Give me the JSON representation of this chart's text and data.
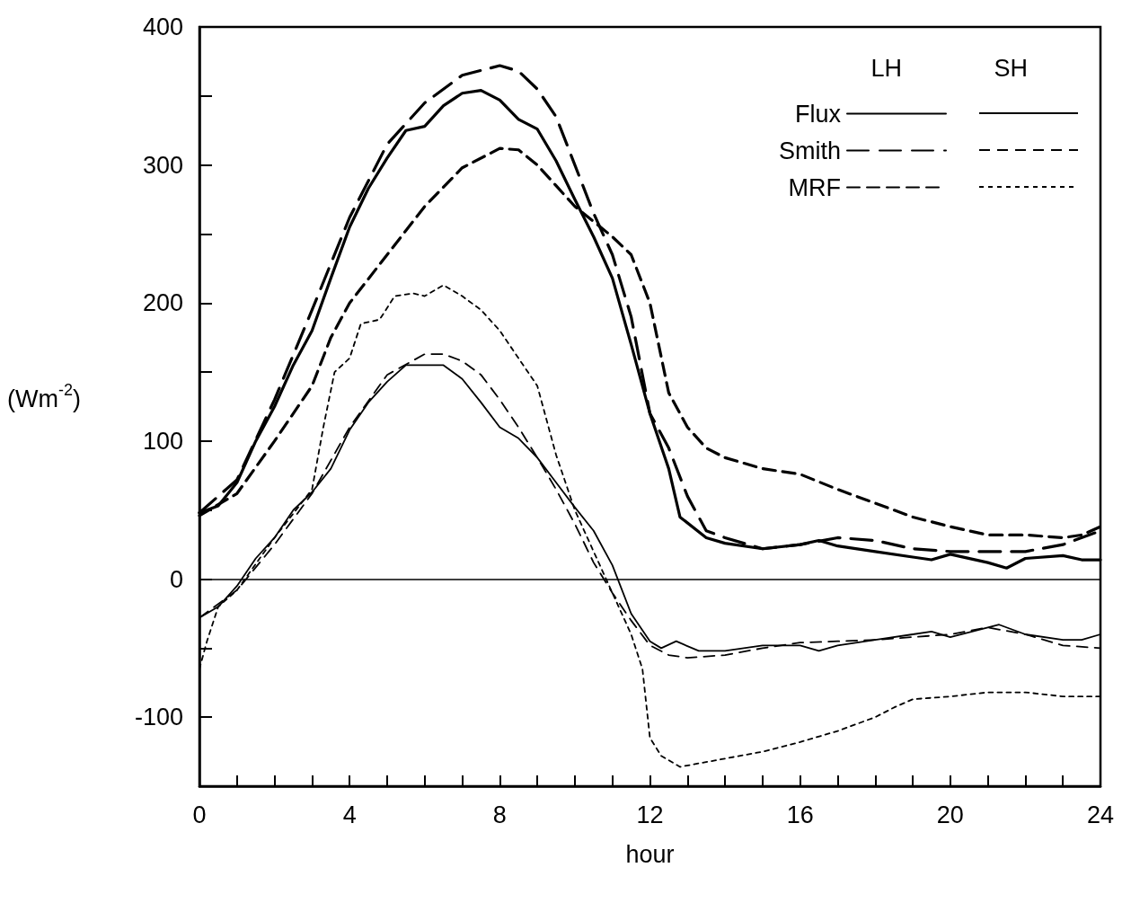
{
  "chart_data": {
    "type": "line",
    "xlabel": "hour",
    "ylabel": "(Wm$^{-2}$)",
    "xlim": [
      0,
      24
    ],
    "ylim": [
      -150,
      400
    ],
    "xticks": [
      0,
      {
        "value": 1,
        "label": null
      },
      {
        "value": 2,
        "label": null
      },
      {
        "value": 3,
        "label": null
      },
      4,
      {
        "value": 5,
        "label": null
      },
      {
        "value": 6,
        "label": null
      },
      {
        "value": 7,
        "label": null
      },
      8,
      {
        "value": 9,
        "label": null
      },
      {
        "value": 10,
        "label": null
      },
      {
        "value": 11,
        "label": null
      },
      12,
      {
        "value": 13,
        "label": null
      },
      {
        "value": 14,
        "label": null
      },
      {
        "value": 15,
        "label": null
      },
      16,
      {
        "value": 17,
        "label": null
      },
      {
        "value": 18,
        "label": null
      },
      {
        "value": 19,
        "label": null
      },
      20,
      {
        "value": 21,
        "label": null
      },
      {
        "value": 22,
        "label": null
      },
      {
        "value": 23,
        "label": null
      },
      24
    ],
    "yticks": [
      {
        "value": -150,
        "label": null
      },
      -100,
      {
        "value": -50,
        "label": null
      },
      0,
      {
        "value": 50,
        "label": null
      },
      100,
      {
        "value": 150,
        "label": null
      },
      200,
      {
        "value": 250,
        "label": null
      },
      300,
      {
        "value": 350,
        "label": null
      },
      400
    ],
    "grid": false,
    "legend": "top right",
    "marker": "none",
    "annotations": [
      "LH",
      "SH"
    ],
    "ref_lines": [
      {
        "axis": "y",
        "value": 0,
        "color": "#000000"
      }
    ],
    "series": [
      {
        "name": "Flux",
        "color": "#000000",
        "line_style": "solid",
        "x": [
          0,
          0.5,
          1,
          1.5,
          2,
          2.5,
          3,
          3.5,
          4,
          4.5,
          5,
          5.5,
          6,
          6.5,
          7,
          7.5,
          8,
          8.5,
          9,
          9.5,
          10,
          10.5,
          11,
          11.5,
          12,
          12.5,
          12.8,
          13.5,
          14,
          15,
          16,
          16.5,
          17,
          18,
          19,
          19.5,
          20,
          21,
          21.5,
          22,
          23,
          23.5,
          24
        ],
        "values": [
          48,
          53,
          70,
          100,
          125,
          155,
          180,
          218,
          255,
          283,
          305,
          325,
          328,
          343,
          352,
          354,
          347,
          333,
          326,
          303,
          275,
          248,
          218,
          170,
          120,
          80,
          45,
          30,
          26,
          22,
          25,
          28,
          24,
          20,
          16,
          14,
          18,
          12,
          8,
          15,
          17,
          14,
          14
        ]
      },
      {
        "name": "Smith",
        "color": "#000000",
        "line_style": "dashed",
        "x": [
          0,
          1,
          2,
          3,
          4,
          5,
          6,
          7,
          8,
          8.5,
          9,
          9.5,
          10,
          10.5,
          11,
          11.5,
          12,
          12.5,
          13,
          13.5,
          14,
          15,
          16,
          17,
          18,
          19,
          20,
          21,
          22,
          23,
          24
        ],
        "values": [
          48,
          72,
          130,
          195,
          262,
          315,
          345,
          365,
          372,
          368,
          355,
          335,
          300,
          265,
          235,
          190,
          120,
          95,
          60,
          35,
          30,
          22,
          25,
          30,
          28,
          22,
          20,
          20,
          20,
          25,
          35
        ]
      },
      {
        "name": "MRF",
        "color": "#000000",
        "line_style": "dashed",
        "x": [
          0,
          1,
          2,
          3,
          3.5,
          4,
          5,
          6,
          7,
          8,
          8.5,
          9,
          9.5,
          10,
          11,
          11.5,
          12,
          12.5,
          13,
          13.5,
          14,
          15,
          16,
          17,
          18,
          19,
          20,
          21,
          22,
          23,
          23.5,
          24
        ],
        "values": [
          46,
          62,
          100,
          140,
          175,
          200,
          235,
          270,
          298,
          312,
          311,
          300,
          285,
          270,
          248,
          235,
          200,
          135,
          110,
          95,
          88,
          80,
          76,
          65,
          55,
          45,
          38,
          32,
          32,
          30,
          32,
          38
        ]
      },
      {
        "color": "#000000",
        "line_style": "solid",
        "x": [
          0,
          0.5,
          1,
          1.5,
          2,
          2.5,
          3,
          3.5,
          4,
          4.5,
          5,
          5.5,
          6,
          6.5,
          7,
          7.5,
          8,
          8.5,
          9,
          9.5,
          10,
          10.5,
          11,
          11.5,
          12,
          12.3,
          12.7,
          13.3,
          14,
          15,
          16,
          16.5,
          17,
          18,
          19,
          19.5,
          20,
          21,
          21.3,
          22,
          23,
          23.5,
          24
        ],
        "values": [
          -28,
          -20,
          -5,
          15,
          30,
          50,
          63,
          80,
          108,
          128,
          143,
          155,
          155,
          155,
          145,
          128,
          110,
          102,
          88,
          70,
          52,
          35,
          10,
          -25,
          -45,
          -50,
          -45,
          -52,
          -52,
          -48,
          -48,
          -52,
          -48,
          -44,
          -40,
          -38,
          -42,
          -35,
          -33,
          -40,
          -44,
          -44,
          -40
        ]
      },
      {
        "color": "#000000",
        "line_style": "dashed",
        "x": [
          0,
          1,
          2,
          3,
          4,
          5,
          6,
          6.5,
          7,
          7.5,
          8,
          8.5,
          9,
          9.5,
          10,
          10.5,
          11,
          11.5,
          12,
          12.5,
          13,
          14,
          15,
          16,
          17,
          18,
          19,
          20,
          21,
          22,
          23,
          24
        ],
        "values": [
          -28,
          -8,
          25,
          62,
          110,
          148,
          163,
          163,
          158,
          148,
          130,
          110,
          88,
          65,
          40,
          12,
          -10,
          -30,
          -48,
          -55,
          -57,
          -55,
          -50,
          -46,
          -45,
          -44,
          -42,
          -40,
          -35,
          -40,
          -48,
          -50
        ]
      },
      {
        "color": "#000000",
        "line_style": "dotted",
        "x": [
          0,
          0.2,
          0.5,
          1,
          2,
          3,
          3.3,
          3.6,
          4,
          4.3,
          4.8,
          5.2,
          5.7,
          6,
          6.5,
          7,
          7.5,
          8,
          8.5,
          9,
          9.5,
          10,
          10.5,
          11,
          11.5,
          11.8,
          12,
          12.3,
          12.8,
          14,
          15,
          16,
          17,
          18,
          18.5,
          19,
          20,
          21,
          22,
          23,
          24
        ],
        "values": [
          -65,
          -45,
          -20,
          -8,
          30,
          65,
          110,
          150,
          160,
          185,
          188,
          205,
          207,
          205,
          213,
          205,
          195,
          180,
          160,
          140,
          90,
          50,
          20,
          -10,
          -40,
          -65,
          -115,
          -128,
          -136,
          -130,
          -125,
          -118,
          -110,
          -100,
          -93,
          -87,
          -85,
          -82,
          -82,
          -85,
          -85
        ]
      }
    ]
  }
}
